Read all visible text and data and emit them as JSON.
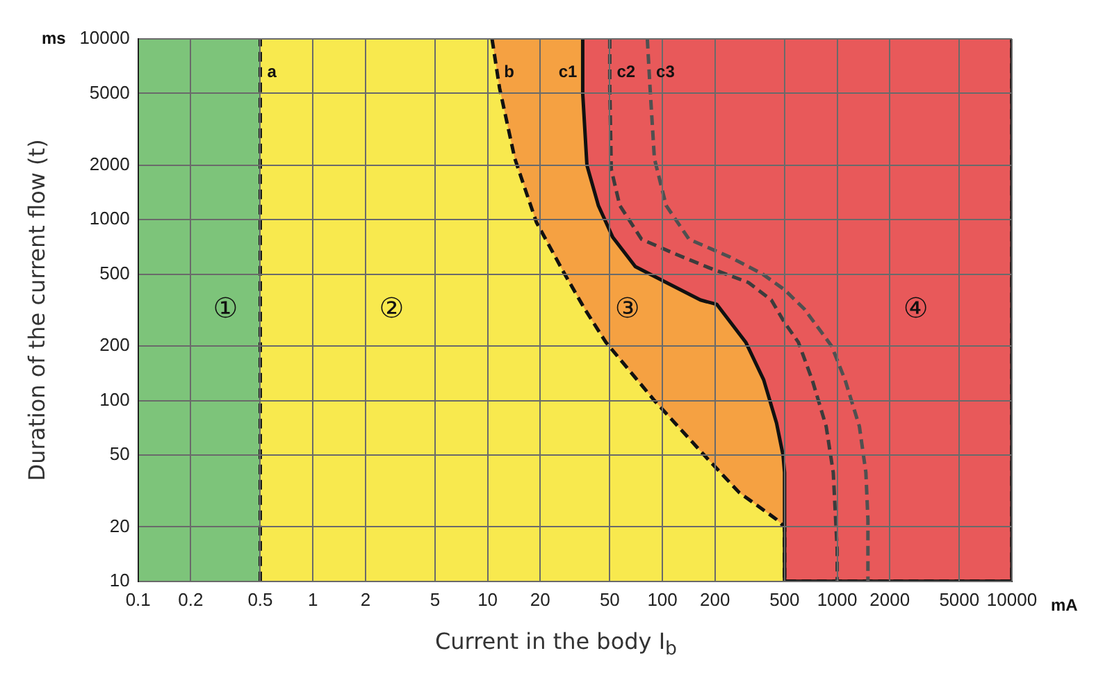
{
  "chart_data": {
    "type": "line",
    "xlabel": "Current in the body I$_{b}$",
    "ylabel": "Duration of the current flow (t)",
    "log": "xy",
    "grid": true,
    "legend": false,
    "marker": "none",
    "xlim": [
      0.1,
      10000
    ],
    "ylim": [
      10,
      10000
    ],
    "xticks": [
      0.1,
      0.2,
      0.5,
      1,
      2,
      5,
      10,
      20,
      50,
      100,
      200,
      500,
      1000,
      2000,
      5000,
      10000
    ],
    "yticks": [
      10,
      20,
      50,
      100,
      200,
      500,
      1000,
      2000,
      5000,
      10000
    ],
    "bands": [
      {
        "axis": "x",
        "from": 0.1,
        "to": 0.5,
        "color": "#7dc47a"
      },
      {
        "axis": "x",
        "from": 0.5,
        "to": 10000,
        "color": "#f8e94e"
      }
    ],
    "series": [
      {
        "type": "line",
        "name": "a",
        "color": "#141414",
        "line_style": "dashed",
        "x": [
          0.5,
          0.5
        ],
        "values": [
          10,
          10000
        ]
      },
      {
        "type": "area",
        "name": "b",
        "color": "#f5a142",
        "line_style": "dashed",
        "x": [
          10.6,
          11.7,
          14.3,
          19,
          27,
          36,
          47.5,
          90,
          180,
          275,
          450,
          500,
          500,
          10000,
          10000
        ],
        "values": [
          10000,
          5350,
          2180,
          970,
          520,
          320,
          210,
          100,
          48,
          31,
          22,
          20,
          10,
          10,
          10000
        ]
      },
      {
        "type": "area",
        "name": "c1",
        "color": "#e8595a",
        "line_style": "solid",
        "x": [
          35,
          35,
          37,
          43,
          52,
          70,
          105,
          165,
          205,
          300,
          380,
          450,
          490,
          500,
          500,
          10000,
          10000
        ],
        "values": [
          10000,
          5000,
          2000,
          1200,
          800,
          550,
          450,
          360,
          340,
          210,
          130,
          75,
          50,
          40,
          10,
          10,
          10000
        ]
      },
      {
        "type": "line",
        "name": "c2",
        "color": "#3c3c3c",
        "line_style": "dashed",
        "x": [
          50,
          50,
          51,
          57,
          76,
          117,
          187,
          310,
          420,
          500,
          600,
          720,
          865,
          950,
          980,
          1000,
          1000
        ],
        "values": [
          10000,
          5350,
          1900,
          1200,
          780,
          650,
          540,
          450,
          360,
          270,
          210,
          130,
          72,
          40,
          22,
          15,
          10
        ]
      },
      {
        "type": "line",
        "name": "c3",
        "color": "#505050",
        "line_style": "dashed",
        "x": [
          82,
          85,
          90,
          105,
          142,
          245,
          375,
          500,
          650,
          930,
          1110,
          1340,
          1460,
          1500,
          1500
        ],
        "values": [
          10000,
          5350,
          2180,
          1200,
          780,
          620,
          500,
          410,
          320,
          200,
          130,
          72,
          40,
          22,
          10
        ]
      }
    ],
    "annotations": [
      "ms",
      "mA",
      "①",
      "②",
      "③",
      "④"
    ]
  }
}
